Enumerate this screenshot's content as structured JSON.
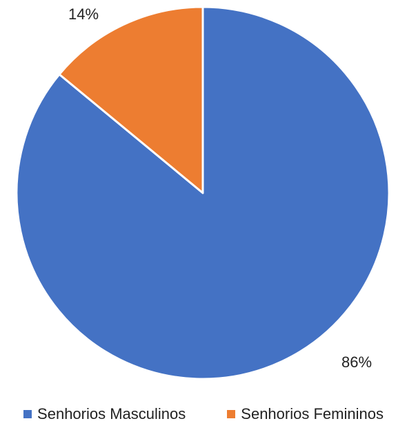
{
  "chart_data": {
    "type": "pie",
    "categories": [
      "Senhorios Masculinos",
      "Senhorios Femininos"
    ],
    "values": [
      86,
      14
    ],
    "data_labels": [
      "86%",
      "14%"
    ],
    "colors": [
      "#4472C4",
      "#ED7D31"
    ],
    "legend_position": "bottom"
  }
}
